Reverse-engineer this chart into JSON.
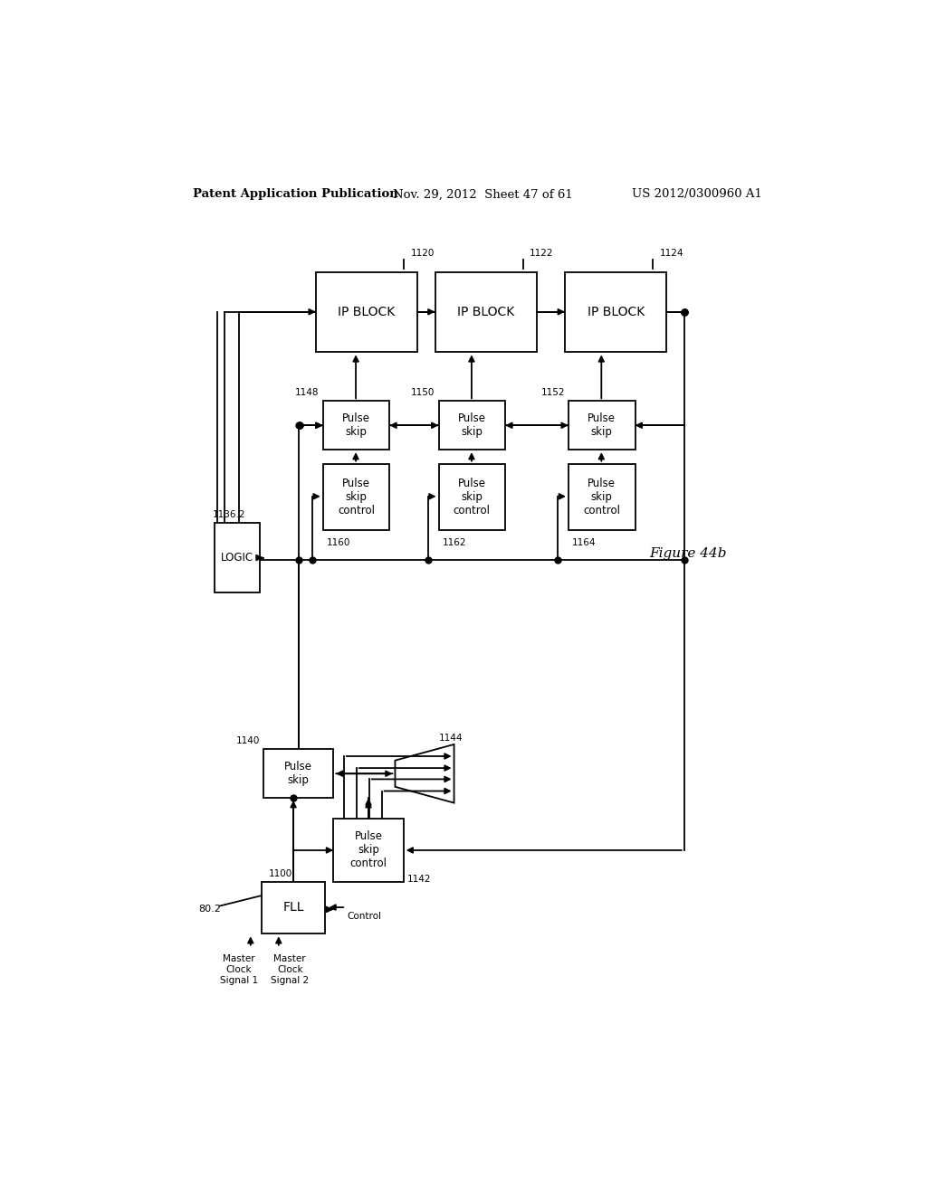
{
  "title_line1": "Patent Application Publication",
  "title_line2": "Nov. 29, 2012  Sheet 47 of 61",
  "title_line3": "US 2012/0300960 A1",
  "bg_color": "#ffffff"
}
